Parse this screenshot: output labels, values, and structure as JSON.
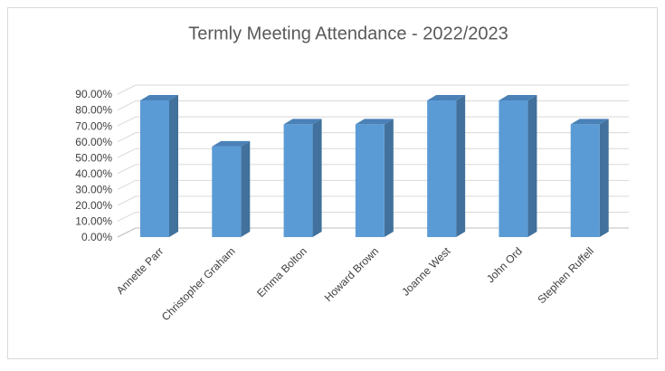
{
  "chart_data": {
    "type": "bar3d",
    "title": "Termly Meeting Attendance - 2022/2023",
    "categories": [
      "Annette Parr",
      "Christopher Graham",
      "Emma Bolton",
      "Howard Brown",
      "Joanne West",
      "John Ord",
      "Stephen Ruffell"
    ],
    "values": [
      86,
      57,
      71,
      71,
      86,
      86,
      71
    ],
    "color": "#5b9bd5",
    "ylim": [
      0,
      90
    ],
    "yticks": [
      {
        "value": 0,
        "label": "0.00%"
      },
      {
        "value": 10,
        "label": "10.00%"
      },
      {
        "value": 20,
        "label": "20.00%"
      },
      {
        "value": 30,
        "label": "30.00%"
      },
      {
        "value": 40,
        "label": "40.00%"
      },
      {
        "value": 50,
        "label": "50.00%"
      },
      {
        "value": 60,
        "label": "60.00%"
      },
      {
        "value": 70,
        "label": "70.00%"
      },
      {
        "value": 80,
        "label": "80.00%"
      },
      {
        "value": 90,
        "label": "90.00%"
      }
    ],
    "grid": true
  }
}
